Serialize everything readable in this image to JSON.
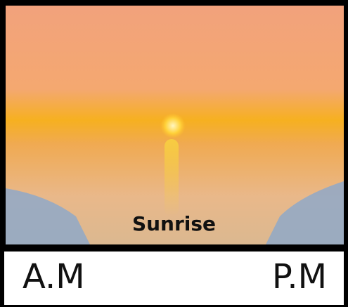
{
  "image": {
    "caption": "Sunrise"
  },
  "toggle": {
    "left": "A.M",
    "right": "P.M"
  }
}
